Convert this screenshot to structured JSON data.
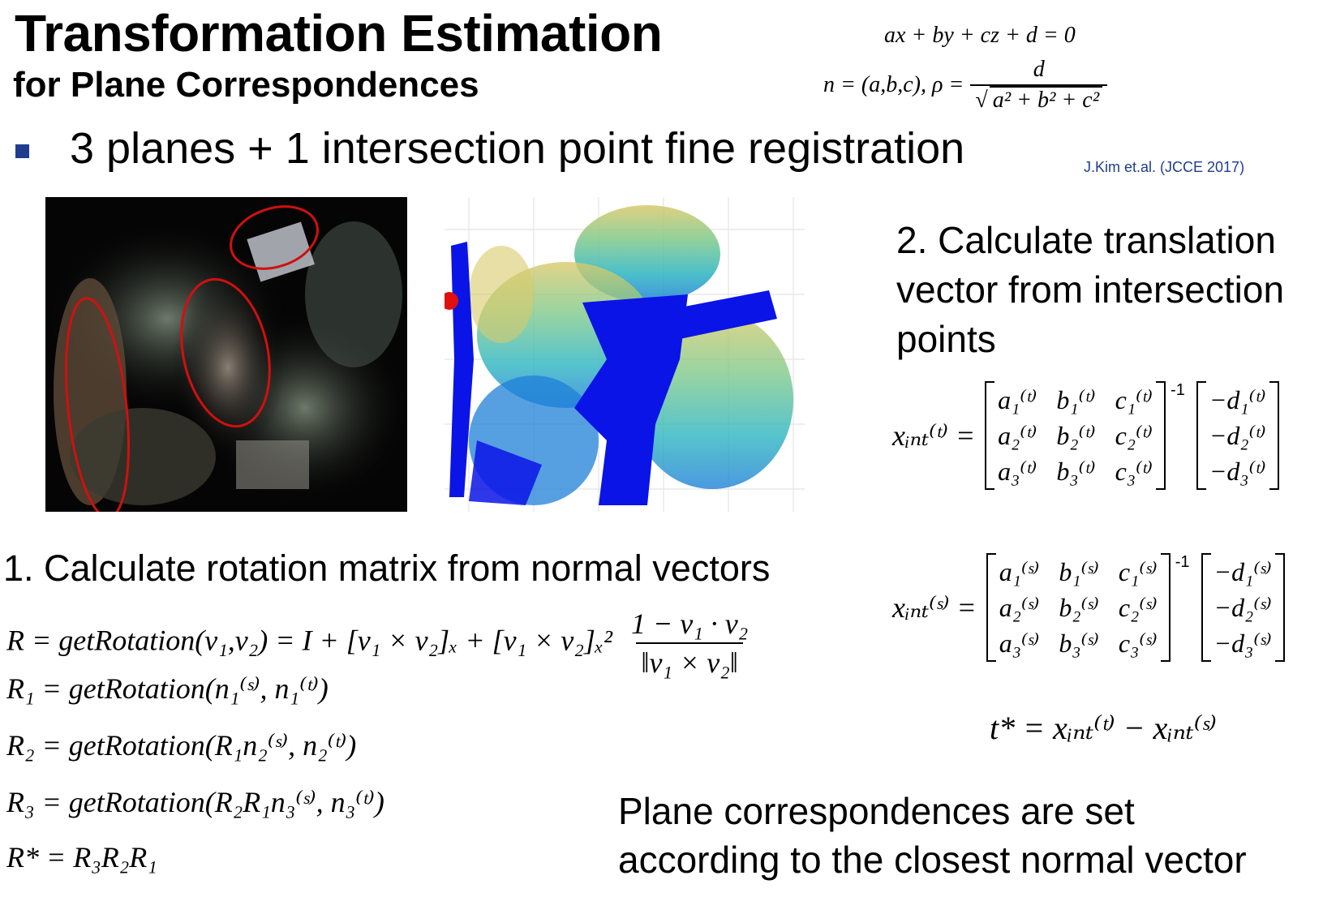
{
  "slide": {
    "title": "Transformation Estimation",
    "subtitle": "for Plane Correspondences",
    "bullet": "3 planes + 1 intersection point fine registration",
    "reference": "J.Kim et.al. (JCCE 2017)",
    "plane_equation": "ax + by + cz + d = 0",
    "normal_def": "n = (a,b,c),  ρ =",
    "rho_numerator": "d",
    "rho_denominator": "a² + b² + c²",
    "step2_line1": "2. Calculate translation",
    "step2_line2": "vector from intersection",
    "step2_line3": "points",
    "step1": "1. Calculate rotation matrix from normal vectors",
    "note_line1": "Plane correspondences are set",
    "note_line2": "according to the closest normal vector"
  },
  "equations": {
    "rotation_def_lhs": "R = getRotation(v₁,v₂) = I + [v₁ × v₂]ₓ + [v₁ × v₂]ₓ²",
    "rotation_num": "1 − v₁ · v₂",
    "rotation_den": "‖v₁ × v₂‖",
    "r1": "R₁ = getRotation(n₁⁽ˢ⁾, n₁⁽ᵗ⁾)",
    "r2": "R₂ = getRotation(R₁n₂⁽ˢ⁾, n₂⁽ᵗ⁾)",
    "r3": "R₃ = getRotation(R₂R₁n₃⁽ˢ⁾, n₃⁽ᵗ⁾)",
    "rstar": "R* = R₃R₂R₁",
    "xt_lhs": "xᵢₙₜ⁽ᵗ⁾ =",
    "xs_lhs": "xᵢₙₜ⁽ˢ⁾ =",
    "inverse_mark": "-1",
    "matrix_t": [
      "a₁⁽ᵗ⁾",
      "b₁⁽ᵗ⁾",
      "c₁⁽ᵗ⁾",
      "a₂⁽ᵗ⁾",
      "b₂⁽ᵗ⁾",
      "c₂⁽ᵗ⁾",
      "a₃⁽ᵗ⁾",
      "b₃⁽ᵗ⁾",
      "c₃⁽ᵗ⁾"
    ],
    "vector_t": [
      "−d₁⁽ᵗ⁾",
      "−d₂⁽ᵗ⁾",
      "−d₃⁽ᵗ⁾"
    ],
    "matrix_s": [
      "a₁⁽ˢ⁾",
      "b₁⁽ˢ⁾",
      "c₁⁽ˢ⁾",
      "a₂⁽ˢ⁾",
      "b₂⁽ˢ⁾",
      "c₂⁽ˢ⁾",
      "a₃⁽ˢ⁾",
      "b₃⁽ˢ⁾",
      "c₃⁽ˢ⁾"
    ],
    "vector_s": [
      "−d₁⁽ˢ⁾",
      "−d₂⁽ˢ⁾",
      "−d₃⁽ˢ⁾"
    ],
    "tstar": "t* = xᵢₙₜ⁽ᵗ⁾ − xᵢₙₜ⁽ˢ⁾"
  },
  "colors": {
    "bullet": "#1f3d8f",
    "ellipse": "#d01010",
    "pointcloud_blue": "#0a14e6"
  }
}
